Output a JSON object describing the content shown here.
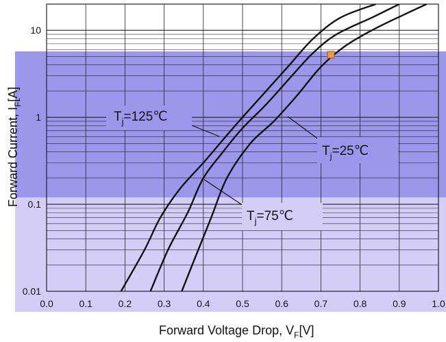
{
  "chart_data": {
    "type": "line",
    "title": "",
    "xlabel": "Forward Voltage Drop, V",
    "xlabel_sub": "F",
    "xlabel_unit": "[V]",
    "ylabel": "Forward Current, I",
    "ylabel_sub": "F",
    "ylabel_unit": "[A]",
    "x_scale": "linear",
    "y_scale": "log",
    "xlim": [
      0.0,
      1.0
    ],
    "ylim": [
      0.01,
      20
    ],
    "grid": true,
    "x_ticks": [
      "0.0",
      "0.1",
      "0.2",
      "0.3",
      "0.4",
      "0.5",
      "0.6",
      "0.7",
      "0.8",
      "0.9",
      "1.0"
    ],
    "y_ticks": [
      {
        "value": 0.01,
        "label": "0.01"
      },
      {
        "value": 0.1,
        "label": "0.1"
      },
      {
        "value": 1,
        "label": "1"
      },
      {
        "value": 10,
        "label": "10"
      }
    ],
    "series": [
      {
        "name": "Tj=125℃",
        "label_main": "T",
        "label_sub": "j",
        "label_rest": "=125℃",
        "x": [
          0.19,
          0.25,
          0.29,
          0.34,
          0.4,
          0.45,
          0.5,
          0.56,
          0.62,
          0.68,
          0.75,
          0.84
        ],
        "y": [
          0.01,
          0.03,
          0.07,
          0.15,
          0.3,
          0.55,
          1.0,
          2.0,
          4.0,
          8.0,
          14.0,
          20.0
        ]
      },
      {
        "name": "Tj=75℃",
        "label_main": "T",
        "label_sub": "j",
        "label_rest": "=75℃",
        "x": [
          0.265,
          0.31,
          0.36,
          0.4,
          0.45,
          0.5,
          0.56,
          0.62,
          0.68,
          0.74,
          0.83,
          0.9
        ],
        "y": [
          0.01,
          0.03,
          0.08,
          0.2,
          0.4,
          0.75,
          1.4,
          2.8,
          5.5,
          9.0,
          14.0,
          20.0
        ]
      },
      {
        "name": "Tj=25℃",
        "label_main": "T",
        "label_sub": "j",
        "label_rest": "=25℃",
        "x": [
          0.345,
          0.38,
          0.42,
          0.46,
          0.52,
          0.58,
          0.64,
          0.7,
          0.76,
          0.83,
          0.91,
          0.97
        ],
        "y": [
          0.01,
          0.025,
          0.07,
          0.2,
          0.5,
          0.9,
          1.8,
          3.8,
          6.5,
          10.0,
          15.0,
          20.0
        ]
      }
    ],
    "annotations": [
      {
        "series": 0,
        "text_main": "T",
        "text_sub": "j",
        "text_rest": "=125℃"
      },
      {
        "series": 2,
        "text_main": "T",
        "text_sub": "j",
        "text_rest": "=25℃"
      },
      {
        "series": 1,
        "text_main": "T",
        "text_sub": "j",
        "text_rest": "=75℃"
      }
    ],
    "colors": {
      "curve": "#111111",
      "grid": "#222222",
      "band_dark": "#9b97ea",
      "band_light": "#d3cef7"
    }
  }
}
